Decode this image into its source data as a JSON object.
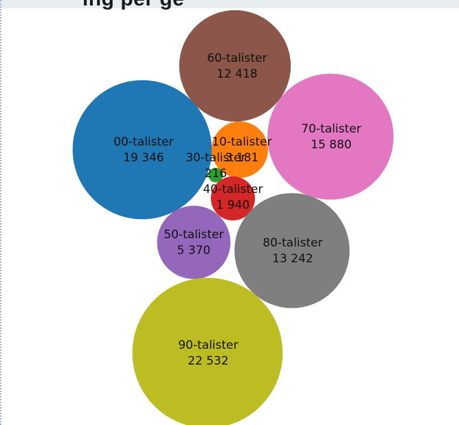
{
  "header": {
    "title_fragment": "ing per ge"
  },
  "chart_data": {
    "type": "bubble",
    "title": "",
    "series": [
      {
        "name": "00-talister",
        "display_value": "19 346",
        "value": 19346,
        "color": "#1f77b4"
      },
      {
        "name": "10-talister",
        "display_value": "3 181",
        "value": 3181,
        "color": "#ff7f0e"
      },
      {
        "name": "30-talister",
        "display_value": "216",
        "value": 216,
        "color": "#2ca02c"
      },
      {
        "name": "40-talister",
        "display_value": "1 940",
        "value": 1940,
        "color": "#d62728"
      },
      {
        "name": "50-talister",
        "display_value": "5 370",
        "value": 5370,
        "color": "#9467bd"
      },
      {
        "name": "60-talister",
        "display_value": "12 418",
        "value": 12418,
        "color": "#8c564b"
      },
      {
        "name": "70-talister",
        "display_value": "15 880",
        "value": 15880,
        "color": "#e377c2"
      },
      {
        "name": "80-talister",
        "display_value": "13 242",
        "value": 13242,
        "color": "#7f7f7f"
      },
      {
        "name": "90-talister",
        "display_value": "22 532",
        "value": 22532,
        "color": "#bcbd22"
      }
    ]
  }
}
